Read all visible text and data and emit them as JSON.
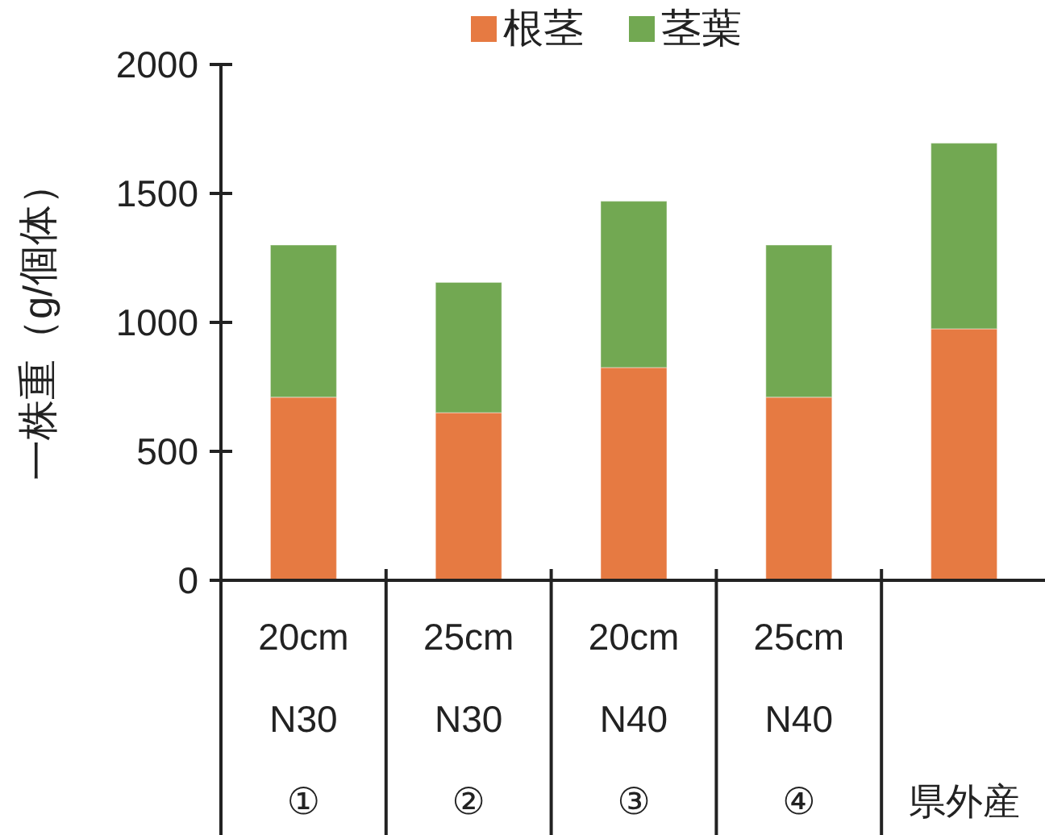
{
  "chart_data": {
    "type": "bar",
    "stacked": true,
    "ylabel": "一株重（g/個体）",
    "categories": [
      "20cm\nN30\n①",
      "25cm\nN30\n②",
      "20cm\nN40\n③",
      "25cm\nN40\n④",
      "県外産"
    ],
    "series": [
      {
        "name": "根茎",
        "color": "#e67a42",
        "values": [
          710,
          650,
          825,
          710,
          975
        ]
      },
      {
        "name": "茎葉",
        "color": "#72a852",
        "values": [
          590,
          505,
          645,
          590,
          720
        ]
      }
    ],
    "ylim": [
      0,
      2000
    ],
    "yticks": [
      0,
      500,
      1000,
      1500,
      2000
    ],
    "grid": false,
    "legend": "top"
  }
}
